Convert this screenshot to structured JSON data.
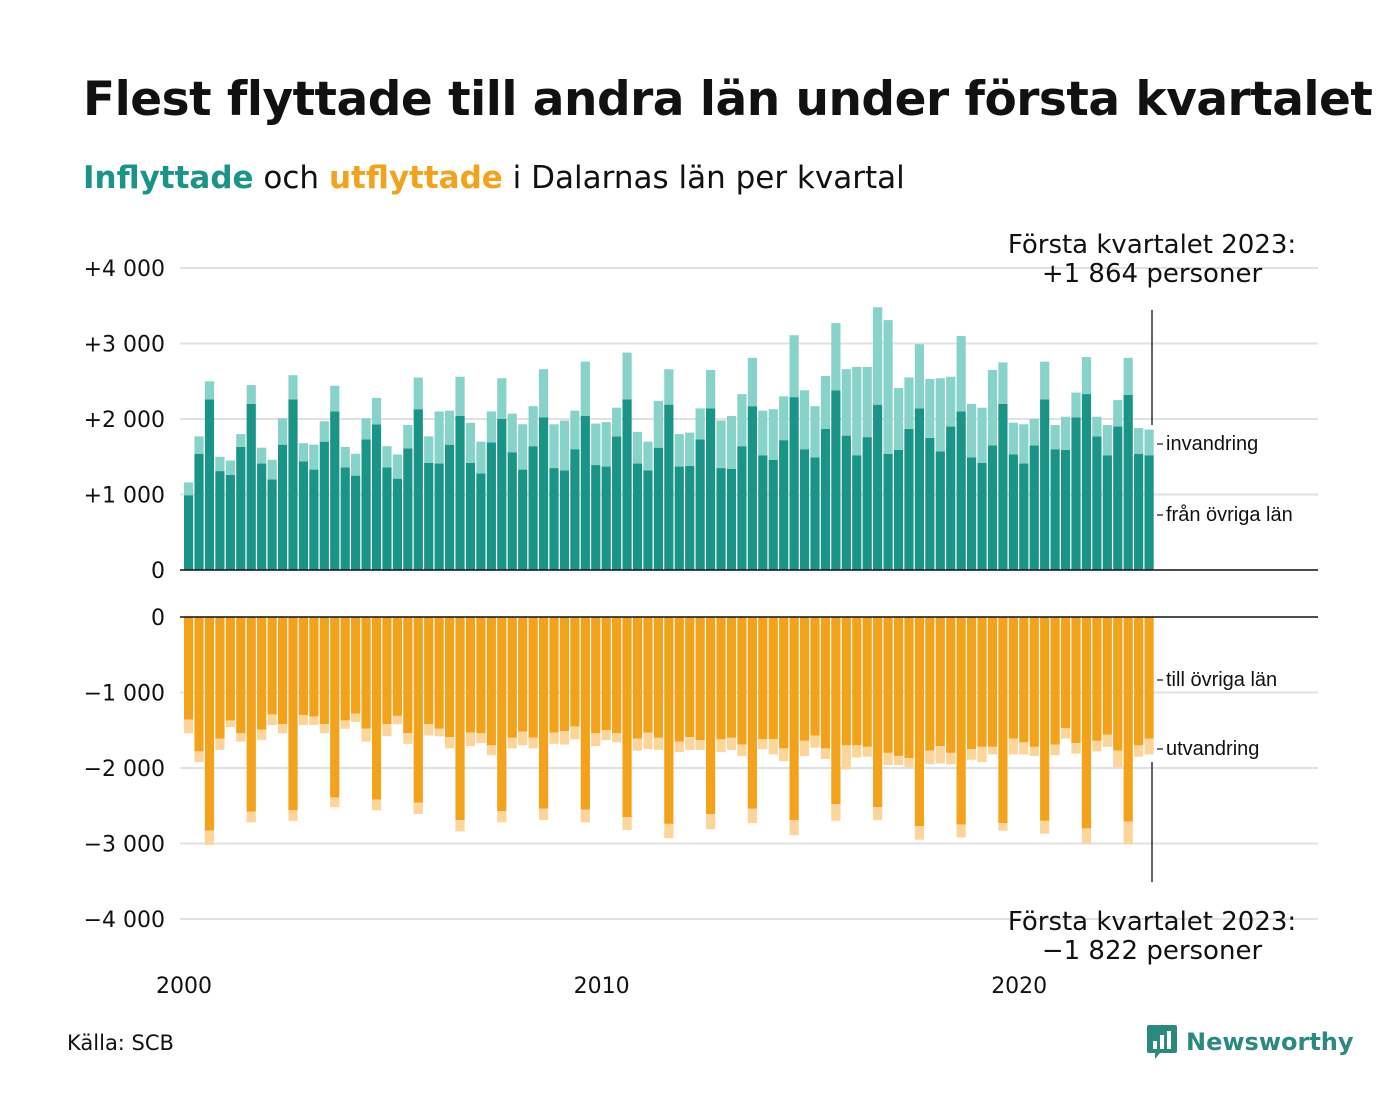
{
  "title": "Flest flyttade till andra län under första kvartalet",
  "subtitle": {
    "inflow_word": "Inflyttade",
    "joiner": "och",
    "outflow_word": "utflyttade",
    "rest": "i Dalarnas län per kvartal"
  },
  "source": "Källa: SCB",
  "brand": {
    "name": "Newsworthy",
    "icon": "bar-chart-icon"
  },
  "colors": {
    "inflow_dark": "#1a9486",
    "inflow_light": "#88d3c9",
    "outflow_dark": "#f3a21c",
    "outflow_light": "#fbd59a",
    "grid": "#e1e1e1"
  },
  "annotations": {
    "top_line1": "Första kvartalet 2023:",
    "top_line2": "+1 864 personer",
    "bottom_line1": "Första kvartalet 2023:",
    "bottom_line2": "−1 822 personer"
  },
  "legend": {
    "invandring": "invandring",
    "fran_ovriga_lan": "från övriga län",
    "till_ovriga_lan": "till övriga län",
    "utvandring": "utvandring"
  },
  "chart_data": [
    {
      "type": "bar",
      "stacked": true,
      "x_ticks": [
        {
          "label": "2000",
          "year": 2000
        },
        {
          "label": "2010",
          "year": 2010
        },
        {
          "label": "2020",
          "year": 2020
        }
      ],
      "y_ticks": [
        "0",
        "+1 000",
        "+2 000",
        "+3 000",
        "+4 000"
      ],
      "ylim": [
        0,
        4000
      ],
      "grid": true,
      "categories": [
        "2000-Q1",
        "2000-Q2",
        "2000-Q3",
        "2000-Q4",
        "2001-Q1",
        "2001-Q2",
        "2001-Q3",
        "2001-Q4",
        "2002-Q1",
        "2002-Q2",
        "2002-Q3",
        "2002-Q4",
        "2003-Q1",
        "2003-Q2",
        "2003-Q3",
        "2003-Q4",
        "2004-Q1",
        "2004-Q2",
        "2004-Q3",
        "2004-Q4",
        "2005-Q1",
        "2005-Q2",
        "2005-Q3",
        "2005-Q4",
        "2006-Q1",
        "2006-Q2",
        "2006-Q3",
        "2006-Q4",
        "2007-Q1",
        "2007-Q2",
        "2007-Q3",
        "2007-Q4",
        "2008-Q1",
        "2008-Q2",
        "2008-Q3",
        "2008-Q4",
        "2009-Q1",
        "2009-Q2",
        "2009-Q3",
        "2009-Q4",
        "2010-Q1",
        "2010-Q2",
        "2010-Q3",
        "2010-Q4",
        "2011-Q1",
        "2011-Q2",
        "2011-Q3",
        "2011-Q4",
        "2012-Q1",
        "2012-Q2",
        "2012-Q3",
        "2012-Q4",
        "2013-Q1",
        "2013-Q2",
        "2013-Q3",
        "2013-Q4",
        "2014-Q1",
        "2014-Q2",
        "2014-Q3",
        "2014-Q4",
        "2015-Q1",
        "2015-Q2",
        "2015-Q3",
        "2015-Q4",
        "2016-Q1",
        "2016-Q2",
        "2016-Q3",
        "2016-Q4",
        "2017-Q1",
        "2017-Q2",
        "2017-Q3",
        "2017-Q4",
        "2018-Q1",
        "2018-Q2",
        "2018-Q3",
        "2018-Q4",
        "2019-Q1",
        "2019-Q2",
        "2019-Q3",
        "2019-Q4",
        "2020-Q1",
        "2020-Q2",
        "2020-Q3",
        "2020-Q4",
        "2021-Q1",
        "2021-Q2",
        "2021-Q3",
        "2021-Q4",
        "2022-Q1",
        "2022-Q2",
        "2022-Q3",
        "2022-Q4",
        "2023-Q1"
      ],
      "series": [
        {
          "name": "från övriga län",
          "values": [
            990,
            1540,
            2260,
            1310,
            1260,
            1630,
            2200,
            1410,
            1200,
            1660,
            2260,
            1440,
            1330,
            1700,
            2100,
            1360,
            1250,
            1730,
            1930,
            1360,
            1210,
            1610,
            2130,
            1420,
            1410,
            1660,
            2040,
            1420,
            1280,
            1690,
            2000,
            1560,
            1330,
            1640,
            2020,
            1350,
            1320,
            1600,
            2040,
            1390,
            1370,
            1770,
            2260,
            1410,
            1320,
            1620,
            2190,
            1370,
            1380,
            1730,
            2140,
            1350,
            1340,
            1640,
            2170,
            1520,
            1460,
            1720,
            2290,
            1600,
            1490,
            1870,
            2380,
            1780,
            1520,
            1760,
            2190,
            1540,
            1590,
            1870,
            2140,
            1750,
            1570,
            1900,
            2100,
            1490,
            1420,
            1650,
            2200,
            1530,
            1410,
            1650,
            2260,
            1600,
            1590,
            2020,
            2330,
            1770,
            1520,
            1900,
            2320,
            1540,
            1520
          ]
        },
        {
          "name": "invandring",
          "values": [
            170,
            230,
            240,
            190,
            190,
            170,
            250,
            210,
            260,
            350,
            320,
            240,
            330,
            270,
            340,
            270,
            290,
            280,
            350,
            280,
            320,
            310,
            420,
            350,
            690,
            450,
            520,
            530,
            420,
            410,
            540,
            510,
            600,
            530,
            640,
            580,
            660,
            510,
            720,
            550,
            590,
            380,
            620,
            420,
            380,
            620,
            470,
            430,
            440,
            410,
            510,
            630,
            700,
            690,
            640,
            590,
            670,
            580,
            820,
            780,
            680,
            700,
            890,
            880,
            1170,
            930,
            1290,
            1770,
            820,
            680,
            850,
            780,
            970,
            660,
            1000,
            710,
            730,
            1000,
            550,
            420,
            520,
            350,
            500,
            320,
            440,
            330,
            490,
            260,
            400,
            350,
            490,
            340,
            340
          ]
        }
      ]
    },
    {
      "type": "bar",
      "stacked": true,
      "y_ticks": [
        "0",
        "−1 000",
        "−2 000",
        "−3 000",
        "−4 000"
      ],
      "ylim": [
        -4000,
        0
      ],
      "grid": true,
      "series": [
        {
          "name": "till övriga län",
          "values": [
            -1360,
            -1780,
            -2830,
            -1610,
            -1370,
            -1540,
            -2580,
            -1490,
            -1290,
            -1420,
            -2560,
            -1300,
            -1320,
            -1420,
            -2390,
            -1370,
            -1280,
            -1480,
            -2420,
            -1420,
            -1310,
            -1540,
            -2460,
            -1420,
            -1480,
            -1590,
            -2690,
            -1530,
            -1540,
            -1700,
            -2570,
            -1600,
            -1520,
            -1600,
            -2540,
            -1530,
            -1510,
            -1450,
            -2550,
            -1540,
            -1500,
            -1540,
            -2650,
            -1610,
            -1530,
            -1600,
            -2740,
            -1650,
            -1590,
            -1630,
            -2610,
            -1620,
            -1600,
            -1690,
            -2540,
            -1620,
            -1620,
            -1740,
            -2690,
            -1640,
            -1570,
            -1740,
            -2480,
            -1700,
            -1700,
            -1720,
            -2520,
            -1800,
            -1840,
            -1870,
            -2770,
            -1770,
            -1710,
            -1800,
            -2750,
            -1750,
            -1720,
            -1720,
            -2730,
            -1610,
            -1660,
            -1720,
            -2700,
            -1690,
            -1470,
            -1670,
            -2800,
            -1640,
            -1560,
            -1770,
            -2710,
            -1700,
            -1610
          ]
        },
        {
          "name": "utvandring",
          "values": [
            -180,
            -140,
            -190,
            -150,
            -90,
            -110,
            -140,
            -140,
            -140,
            -120,
            -140,
            -130,
            -110,
            -120,
            -130,
            -110,
            -110,
            -170,
            -140,
            -160,
            -110,
            -140,
            -150,
            -150,
            -100,
            -150,
            -150,
            -180,
            -130,
            -130,
            -150,
            -140,
            -180,
            -140,
            -150,
            -150,
            -180,
            -170,
            -170,
            -170,
            -130,
            -120,
            -170,
            -160,
            -220,
            -160,
            -190,
            -140,
            -170,
            -130,
            -200,
            -170,
            -160,
            -150,
            -190,
            -130,
            -200,
            -170,
            -200,
            -200,
            -160,
            -140,
            -220,
            -320,
            -160,
            -130,
            -170,
            -160,
            -120,
            -120,
            -180,
            -180,
            -230,
            -150,
            -170,
            -140,
            -200,
            -100,
            -100,
            -210,
            -160,
            -120,
            -170,
            -140,
            -140,
            -140,
            -200,
            -140,
            -160,
            -220,
            -300,
            -150,
            -210
          ]
        }
      ]
    }
  ]
}
